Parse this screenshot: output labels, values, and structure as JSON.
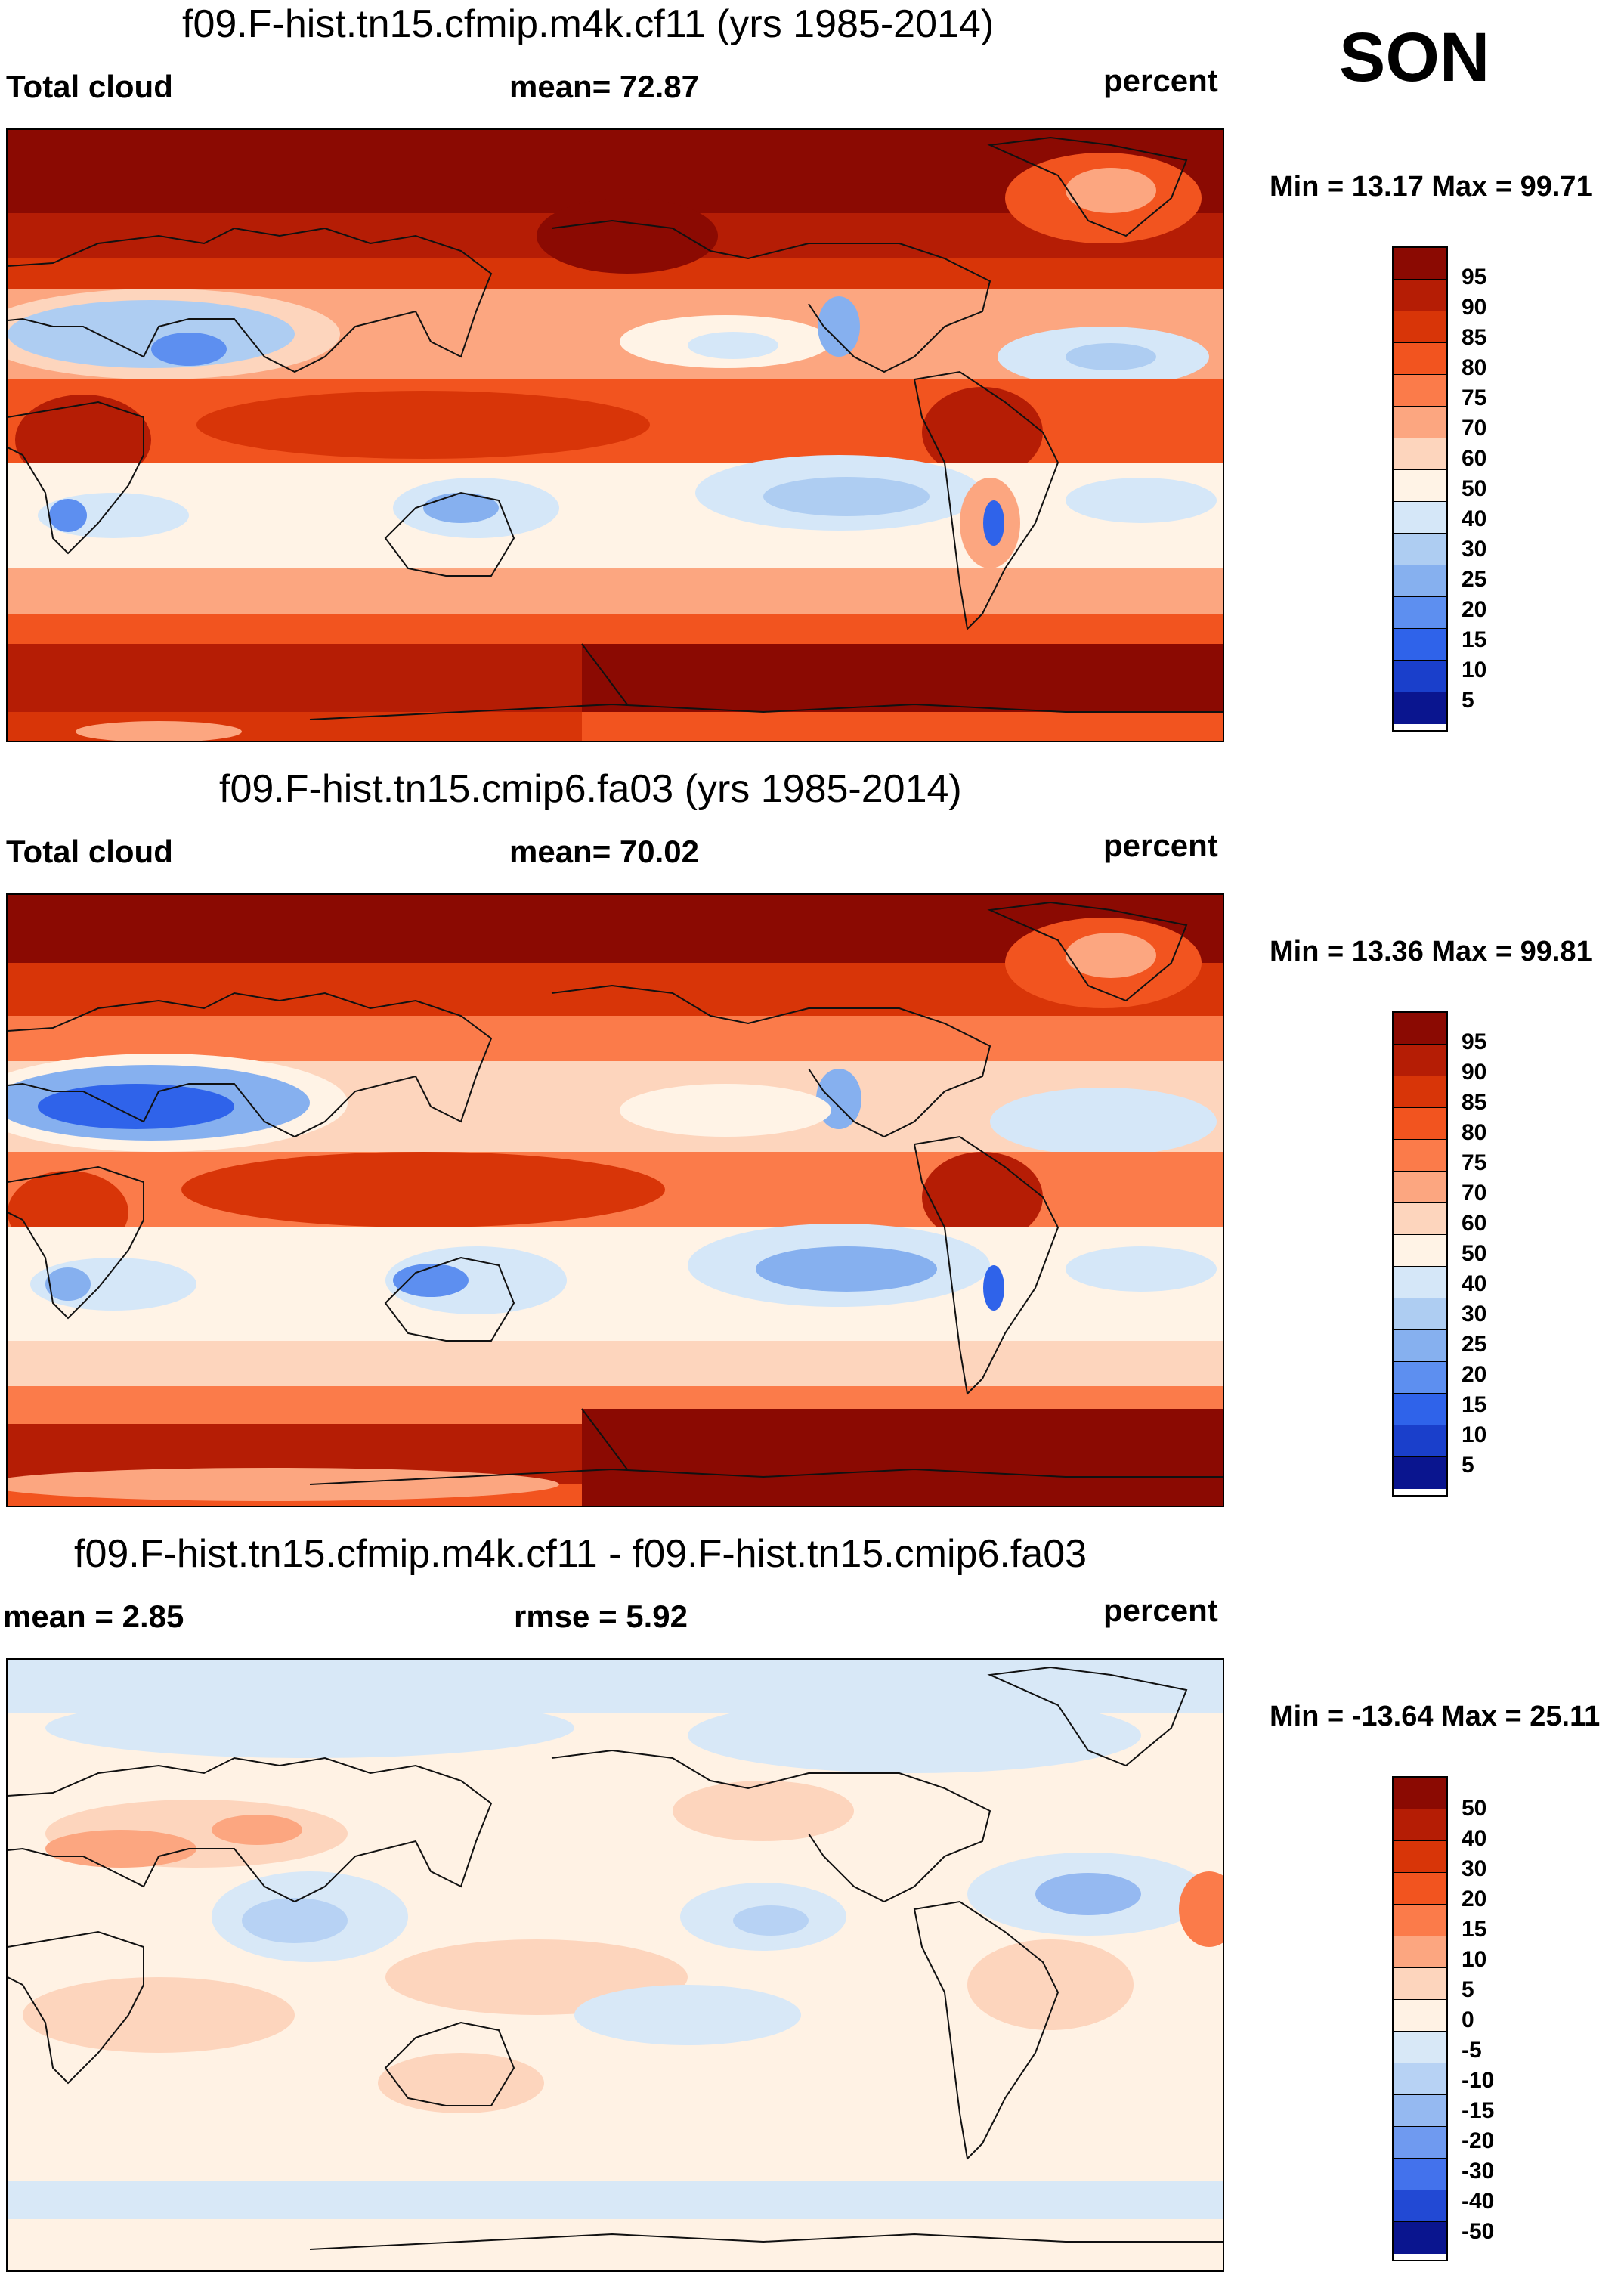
{
  "season": "SON",
  "units_label": "percent",
  "panels": [
    {
      "title": "f09.F-hist.tn15.cfmip.m4k.cf11 (yrs 1985-2014)",
      "variable": "Total cloud",
      "stat": "mean=  72.87",
      "minmax": "Min =  13.17 Max =  99.71",
      "levels": [
        "95",
        "90",
        "85",
        "80",
        "75",
        "70",
        "60",
        "50",
        "40",
        "30",
        "25",
        "20",
        "15",
        "10",
        "5"
      ]
    },
    {
      "title": "f09.F-hist.tn15.cmip6.fa03 (yrs 1985-2014)",
      "variable": "Total cloud",
      "stat": "mean=  70.02",
      "minmax": "Min =  13.36 Max =  99.81",
      "levels": [
        "95",
        "90",
        "85",
        "80",
        "75",
        "70",
        "60",
        "50",
        "40",
        "30",
        "25",
        "20",
        "15",
        "10",
        "5"
      ]
    },
    {
      "title": "f09.F-hist.tn15.cfmip.m4k.cf11 - f09.F-hist.tn15.cmip6.fa03",
      "variable": "mean =   2.85",
      "stat": "rmse =    5.92",
      "minmax": "Min = -13.64 Max =  25.11",
      "levels": [
        "50",
        "40",
        "30",
        "20",
        "15",
        "10",
        "5",
        "0",
        "-5",
        "-10",
        "-15",
        "-20",
        "-30",
        "-40",
        "-50"
      ]
    }
  ],
  "colors": {
    "abs_scale": [
      "#8b0a02",
      "#b51d05",
      "#d83508",
      "#f2541f",
      "#fb7b4a",
      "#fca680",
      "#fdd5bd",
      "#fff3e6",
      "#d5e7f8",
      "#aecdf2",
      "#86b0ef",
      "#5d8ff0",
      "#2f63ea",
      "#1a3fcb",
      "#0a158f"
    ],
    "diff_scale": [
      "#8b0a02",
      "#b51d05",
      "#d83508",
      "#f2541f",
      "#fb7b4a",
      "#fca680",
      "#fdd5bd",
      "#fff2e4",
      "#d8e8f7",
      "#b7d2f4",
      "#95b9f1",
      "#6f9af0",
      "#4372ec",
      "#2249d4",
      "#0a158f"
    ]
  }
}
